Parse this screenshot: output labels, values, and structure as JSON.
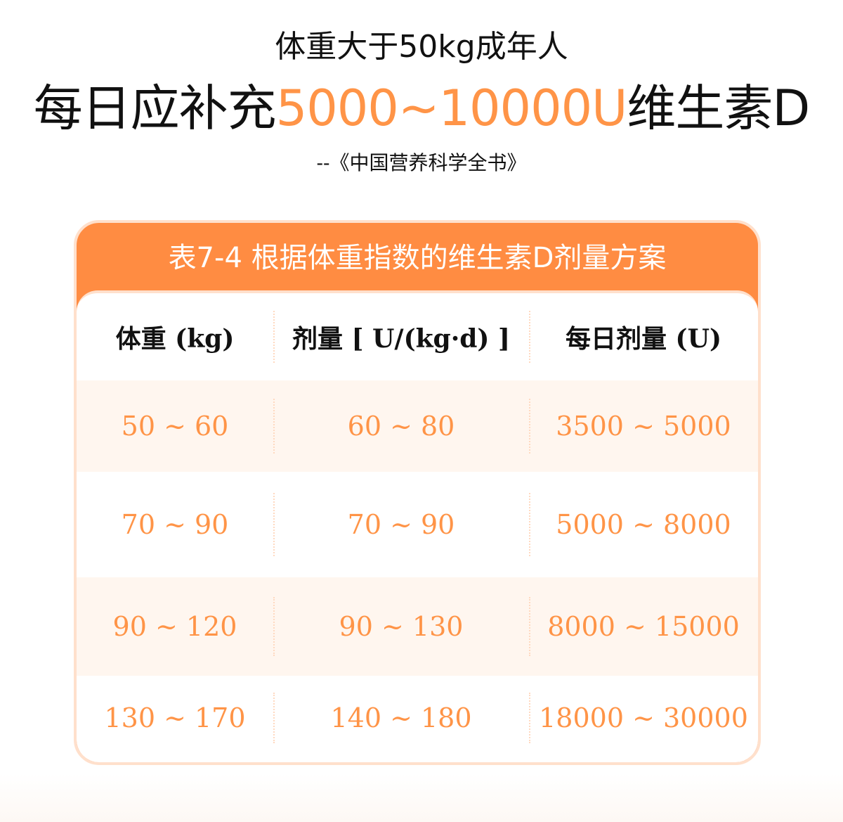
{
  "heading": {
    "subtitle": "体重大于50kg成年人",
    "main_prefix": "每日应补充",
    "main_highlight": "5000~10000U",
    "main_suffix": "维生素D",
    "source": "--《中国营养科学全书》"
  },
  "table": {
    "title": "表7-4  根据体重指数的维生素D剂量方案",
    "columns": [
      "体重 (kg)",
      "剂量 [ U/(kg·d) ]",
      "每日剂量 (U)"
    ],
    "rows": [
      [
        "50 ~ 60",
        "60 ~ 80",
        "3500 ~ 5000"
      ],
      [
        "70 ~ 90",
        "70 ~ 90",
        "5000 ~ 8000"
      ],
      [
        "90 ~ 120",
        "90 ~ 130",
        "8000 ~ 15000"
      ],
      [
        "130 ~ 170",
        "140 ~ 180",
        "18000 ~ 30000"
      ]
    ]
  },
  "colors": {
    "accent": "#FF8C42",
    "highlight_text": "#FF9447",
    "row_tint": "#FFF6EF",
    "border": "#FFE0CC"
  }
}
